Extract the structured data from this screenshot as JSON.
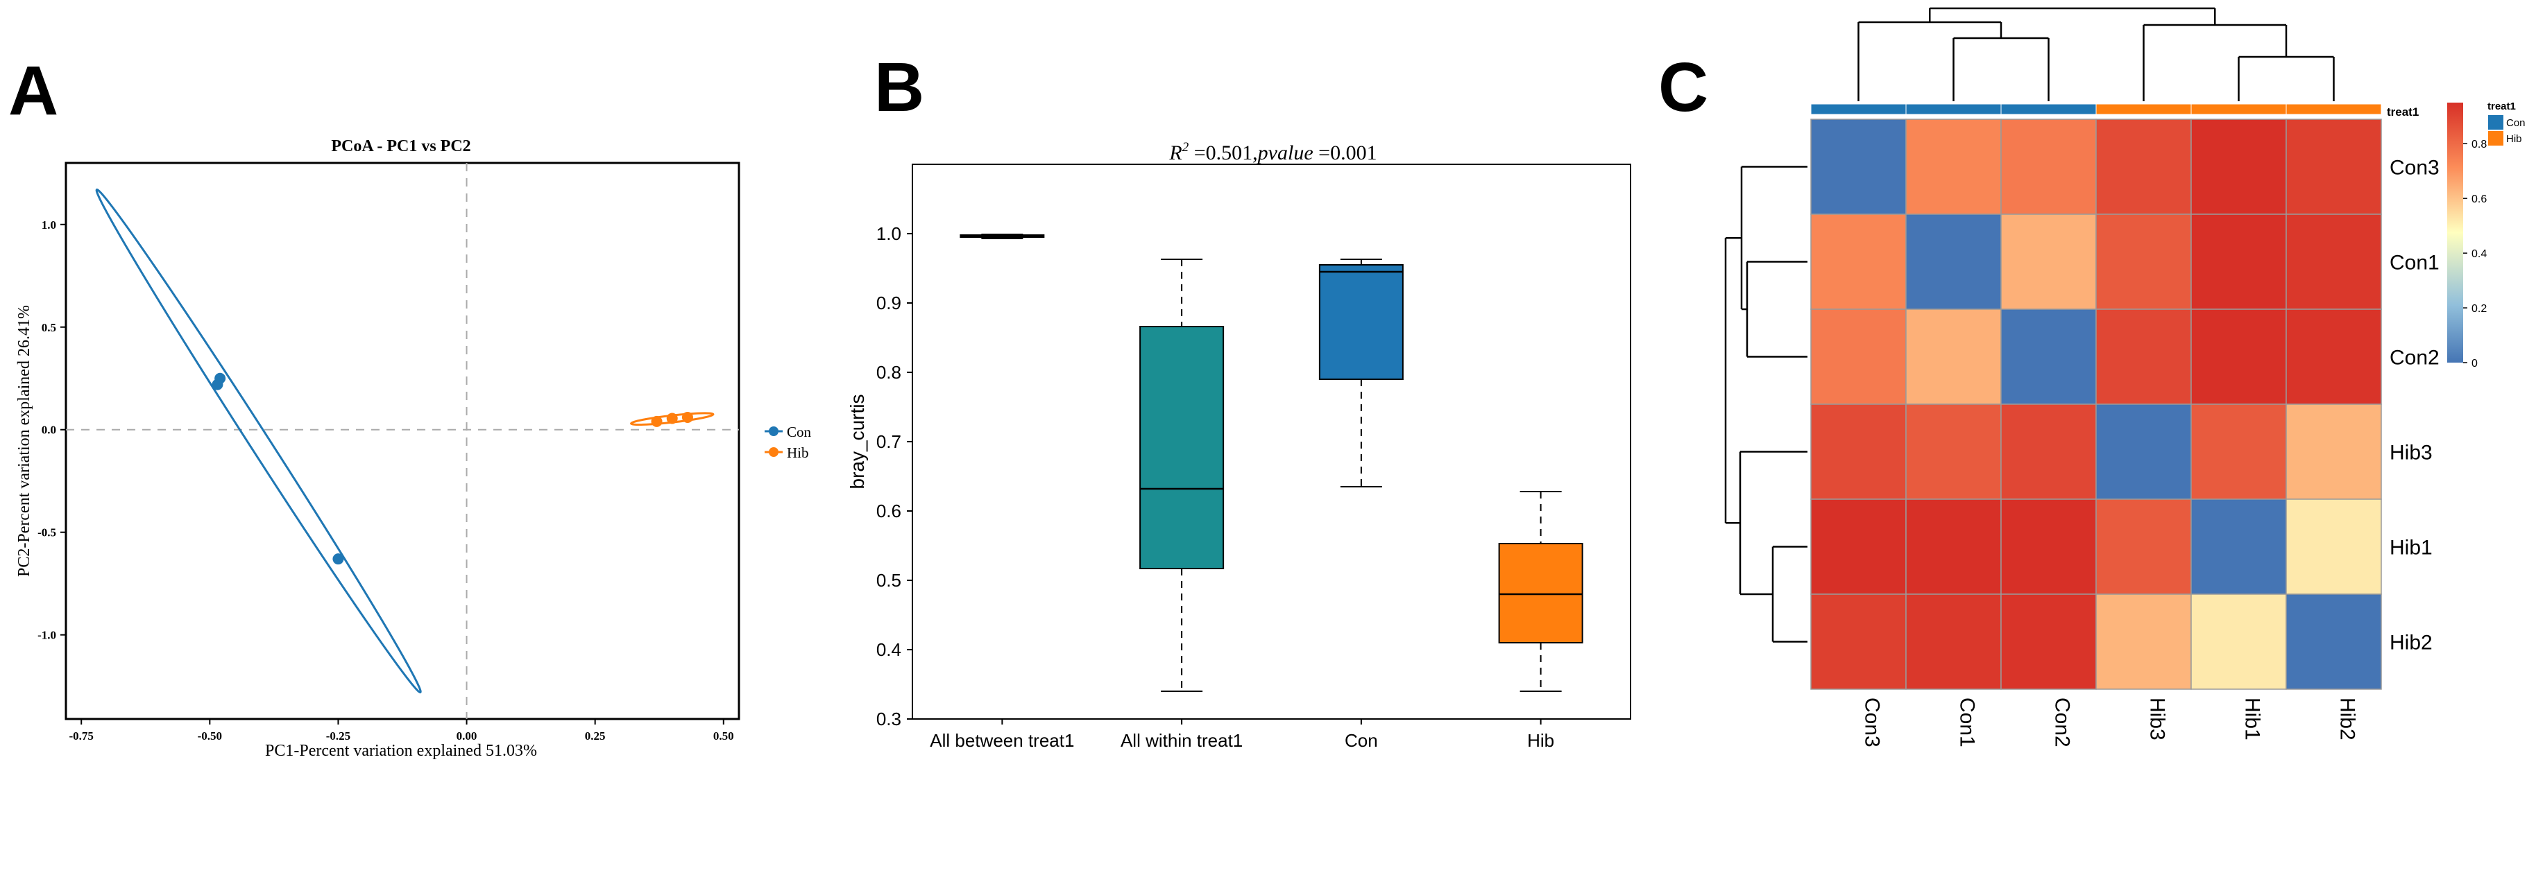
{
  "panel_labels": [
    "A",
    "B",
    "C"
  ],
  "colors": {
    "con": "#1f77b4",
    "hib": "#ff7f0e",
    "teal": "#1b8e92",
    "heat_low": "#4575b4",
    "heat_mid": "#ffffbf",
    "heat_high": "#d73027"
  },
  "chart_data": [
    {
      "type": "scatter",
      "title": "PCoA - PC1 vs PC2",
      "xlabel": "PC1-Percent variation explained 51.03%",
      "ylabel": "PC2-Percent variation explained 26.41%",
      "xlim": [
        -0.78,
        0.53
      ],
      "ylim": [
        -1.41,
        1.3
      ],
      "xticks": [
        -0.75,
        -0.5,
        -0.25,
        0.0,
        0.25,
        0.5
      ],
      "xtick_labels": [
        "-0.75",
        "-0.50",
        "-0.25",
        "0.00",
        "0.25",
        "0.50"
      ],
      "yticks": [
        1.0,
        0.5,
        0.0,
        -0.5,
        -1.0
      ],
      "ytick_labels": [
        "1.0",
        "0.5",
        "0.0",
        "-0.5",
        "-1.0"
      ],
      "legend": [
        "Con",
        "Hib"
      ],
      "legend_position": "right",
      "series": [
        {
          "name": "Con",
          "points": [
            [
              -0.48,
              0.25
            ],
            [
              -0.485,
              0.22
            ],
            [
              -0.25,
              -0.63
            ]
          ],
          "ellipse": {
            "cx": -0.405,
            "cy": -0.055,
            "rx": 1.405,
            "ry": 0.022,
            "angle_from": [
              -0.72,
              1.17
            ],
            "angle_to": [
              -0.09,
              -1.28
            ]
          }
        },
        {
          "name": "Hib",
          "points": [
            [
              0.37,
              0.04
            ],
            [
              0.4,
              0.055
            ],
            [
              0.43,
              0.06
            ]
          ],
          "ellipse": {
            "cx": 0.4,
            "cy": 0.05,
            "rx": 0.08,
            "ry": 0.009,
            "angle_from": [
              0.32,
              0.03
            ],
            "angle_to": [
              0.48,
              0.075
            ]
          }
        }
      ]
    },
    {
      "type": "box",
      "title_r2": "0.501",
      "title_pvalue": "0.001",
      "ylabel": "bray_curtis",
      "ylim": [
        0.3,
        1.1
      ],
      "yticks": [
        0.3,
        0.4,
        0.5,
        0.6,
        0.7,
        0.8,
        0.9,
        1.0
      ],
      "ytick_labels": [
        "0.3",
        "0.4",
        "0.5",
        "0.6",
        "0.7",
        "0.8",
        "0.9",
        "1.0"
      ],
      "categories": [
        "All between treat1",
        "All within treat1",
        "Con",
        "Hib"
      ],
      "boxes": [
        {
          "min": 0.993,
          "q1": 0.995,
          "median": 0.997,
          "q3": 0.998,
          "max": 0.999,
          "color": "#1f77b4"
        },
        {
          "min": 0.34,
          "q1": 0.517,
          "median": 0.632,
          "q3": 0.866,
          "max": 0.963,
          "color": "#1b8e92"
        },
        {
          "min": 0.635,
          "q1": 0.79,
          "median": 0.945,
          "q3": 0.955,
          "max": 0.963,
          "color": "#1f77b4"
        },
        {
          "min": 0.34,
          "q1": 0.41,
          "median": 0.48,
          "q3": 0.553,
          "max": 0.628,
          "color": "#ff7f0e"
        }
      ]
    },
    {
      "type": "heatmap",
      "rows": [
        "Con3",
        "Con1",
        "Con2",
        "Hib3",
        "Hib1",
        "Hib2"
      ],
      "cols": [
        "Con3",
        "Con1",
        "Con2",
        "Hib3",
        "Hib1",
        "Hib2"
      ],
      "col_groups": [
        "Con",
        "Con",
        "Con",
        "Hib",
        "Hib",
        "Hib"
      ],
      "annotation_title": "treat1",
      "legend_title": "treat1",
      "legend_items": [
        "Con",
        "Hib"
      ],
      "colorbar_ticks": [
        0,
        0.2,
        0.4,
        0.6,
        0.8
      ],
      "colorbar_labels": [
        "0",
        "0.2",
        "0.4",
        "0.6",
        "0.8"
      ],
      "colorbar_range": [
        0,
        0.95
      ],
      "values": [
        [
          0.0,
          0.73,
          0.76,
          0.88,
          0.95,
          0.91
        ],
        [
          0.73,
          0.0,
          0.64,
          0.84,
          0.95,
          0.93
        ],
        [
          0.76,
          0.64,
          0.0,
          0.89,
          0.95,
          0.94
        ],
        [
          0.88,
          0.84,
          0.89,
          0.0,
          0.84,
          0.63
        ],
        [
          0.95,
          0.95,
          0.95,
          0.84,
          0.0,
          0.52
        ],
        [
          0.91,
          0.93,
          0.94,
          0.63,
          0.52,
          0.0
        ]
      ]
    }
  ]
}
